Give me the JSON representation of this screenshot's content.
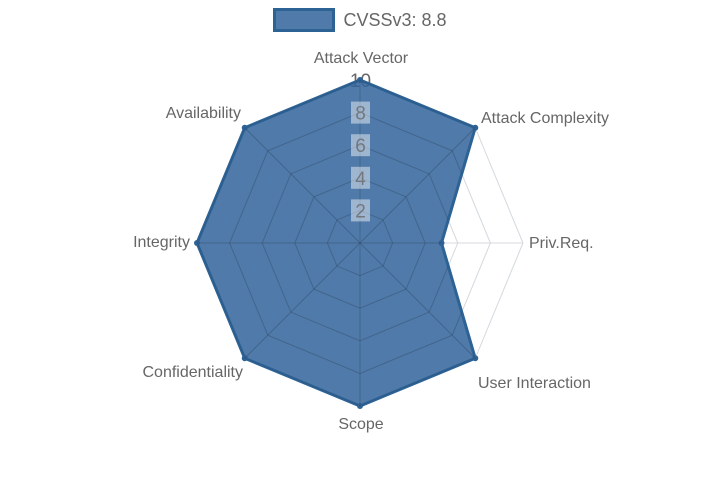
{
  "chart_data": {
    "type": "radar",
    "title": "",
    "categories": [
      "Attack Vector",
      "Attack Complexity",
      "Priv.Req.",
      "User Interaction",
      "Scope",
      "Confidentiality",
      "Integrity",
      "Availability"
    ],
    "series": [
      {
        "name": "CVSSv3: 8.8",
        "values": [
          10,
          10,
          5,
          10,
          10,
          10,
          10,
          10
        ]
      }
    ],
    "scale": {
      "min": 0,
      "max": 10,
      "step": 2,
      "ticks": [
        2,
        4,
        6,
        8,
        10
      ]
    },
    "legend": {
      "position": "top",
      "label": "CVSSv3: 8.8"
    },
    "grid": true,
    "colors": {
      "fill": "rgba(49,99,154,0.85)",
      "border": "#2d6295",
      "grid_line": "#d4d9de",
      "grid_line_over_fill": "rgba(47,62,82,0.28)",
      "tick_text": "#666666",
      "tick_backdrop": "rgba(255,255,255,0.75)",
      "point_label": "#666666",
      "legend_text": "#666666",
      "background": "#ffffff"
    }
  }
}
